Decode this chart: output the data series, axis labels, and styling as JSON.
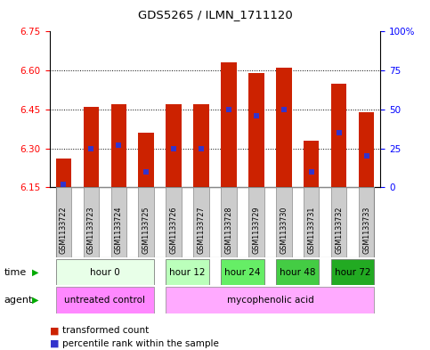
{
  "title": "GDS5265 / ILMN_1711120",
  "samples": [
    "GSM1133722",
    "GSM1133723",
    "GSM1133724",
    "GSM1133725",
    "GSM1133726",
    "GSM1133727",
    "GSM1133728",
    "GSM1133729",
    "GSM1133730",
    "GSM1133731",
    "GSM1133732",
    "GSM1133733"
  ],
  "bar_values": [
    6.26,
    6.46,
    6.47,
    6.36,
    6.47,
    6.47,
    6.63,
    6.59,
    6.61,
    6.33,
    6.55,
    6.44
  ],
  "bar_base": 6.15,
  "percentile_values": [
    2,
    25,
    27,
    10,
    25,
    25,
    50,
    46,
    50,
    10,
    35,
    20
  ],
  "ylim_left": [
    6.15,
    6.75
  ],
  "ylim_right": [
    0,
    100
  ],
  "yticks_left": [
    6.15,
    6.3,
    6.45,
    6.6,
    6.75
  ],
  "yticks_right": [
    0,
    25,
    50,
    75,
    100
  ],
  "bar_color": "#cc2200",
  "percentile_color": "#3333cc",
  "time_groups": [
    {
      "label": "hour 0",
      "start": 0,
      "end": 4,
      "color": "#e8ffe8"
    },
    {
      "label": "hour 12",
      "start": 4,
      "end": 6,
      "color": "#bbffbb"
    },
    {
      "label": "hour 24",
      "start": 6,
      "end": 8,
      "color": "#66ee66"
    },
    {
      "label": "hour 48",
      "start": 8,
      "end": 10,
      "color": "#44cc44"
    },
    {
      "label": "hour 72",
      "start": 10,
      "end": 12,
      "color": "#22aa22"
    }
  ],
  "agent_groups": [
    {
      "label": "untreated control",
      "start": 0,
      "end": 4,
      "color": "#ff88ff"
    },
    {
      "label": "mycophenolic acid",
      "start": 4,
      "end": 12,
      "color": "#ffaaff"
    }
  ],
  "sample_bg": "#cccccc",
  "legend_red_label": "transformed count",
  "legend_blue_label": "percentile rank within the sample",
  "time_label": "time",
  "agent_label": "agent",
  "bar_width": 0.55
}
